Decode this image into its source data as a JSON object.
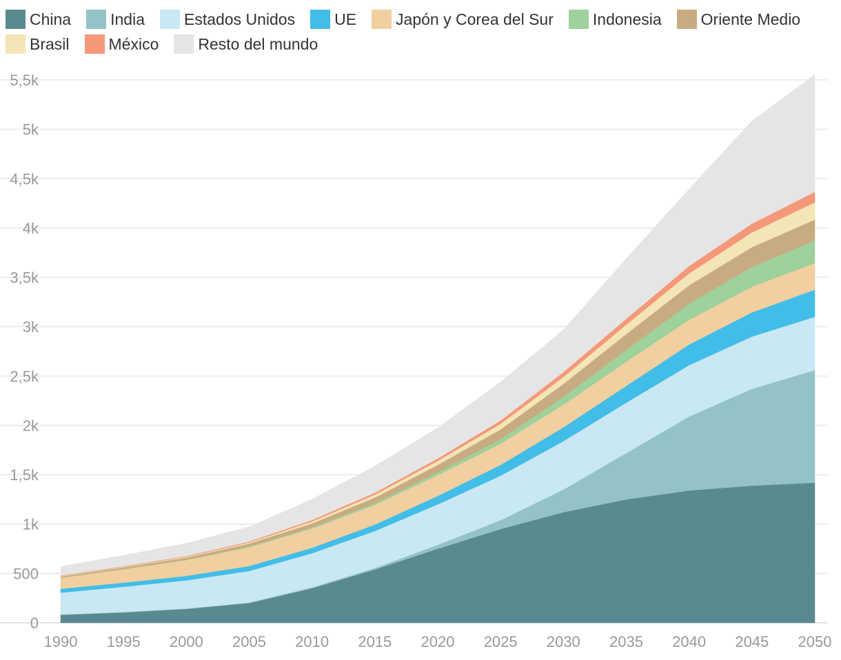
{
  "chart_data": {
    "type": "area",
    "stacked": true,
    "x": [
      1990,
      1995,
      2000,
      2005,
      2010,
      2015,
      2020,
      2025,
      2030,
      2035,
      2040,
      2045,
      2050
    ],
    "x_ticks": [
      "1990",
      "1995",
      "2000",
      "2005",
      "2010",
      "2015",
      "2020",
      "2025",
      "2030",
      "2035",
      "2040",
      "2045",
      "2050"
    ],
    "ylim": [
      0,
      5500
    ],
    "y_ticks": [
      0,
      500,
      1000,
      1500,
      2000,
      2500,
      3000,
      3500,
      4000,
      4500,
      5000,
      5500
    ],
    "y_tick_labels": [
      "0",
      "500",
      "1k",
      "1,5k",
      "2k",
      "2,5k",
      "3k",
      "3,5k",
      "4k",
      "4,5k",
      "5k",
      "5,5k"
    ],
    "grid": true,
    "legend_position": "top",
    "series": [
      {
        "name": "China",
        "color": "#598a8f",
        "values": [
          80,
          105,
          140,
          200,
          350,
          540,
          750,
          950,
          1120,
          1250,
          1340,
          1390,
          1420
        ]
      },
      {
        "name": "India",
        "color": "#94c3c7",
        "values": [
          5,
          5,
          5,
          5,
          10,
          15,
          40,
          90,
          230,
          470,
          750,
          980,
          1140
        ]
      },
      {
        "name": "Estados Unidos",
        "color": "#c9e8f3",
        "values": [
          220,
          255,
          285,
          320,
          345,
          375,
          410,
          450,
          490,
          510,
          520,
          530,
          540
        ]
      },
      {
        "name": "UE",
        "color": "#42bde8",
        "values": [
          40,
          42,
          45,
          50,
          55,
          65,
          85,
          110,
          140,
          170,
          210,
          245,
          275
        ]
      },
      {
        "name": "Japón y Corea del Sur",
        "color": "#f1cfa0",
        "values": [
          110,
          135,
          160,
          190,
          195,
          200,
          210,
          215,
          230,
          245,
          250,
          260,
          270
        ]
      },
      {
        "name": "Indonesia",
        "color": "#9ed19b",
        "values": [
          3,
          4,
          5,
          8,
          12,
          18,
          30,
          45,
          80,
          120,
          165,
          200,
          230
        ]
      },
      {
        "name": "Oriente Medio",
        "color": "#c9ab82",
        "values": [
          12,
          15,
          20,
          30,
          40,
          55,
          75,
          100,
          130,
          160,
          185,
          200,
          210
        ]
      },
      {
        "name": "Brasil",
        "color": "#f3e5b5",
        "values": [
          5,
          6,
          8,
          10,
          20,
          30,
          40,
          55,
          70,
          95,
          120,
          150,
          175
        ]
      },
      {
        "name": "México",
        "color": "#f59879",
        "values": [
          5,
          6,
          8,
          10,
          15,
          20,
          25,
          35,
          50,
          60,
          75,
          90,
          105
        ]
      },
      {
        "name": "Resto del mundo",
        "color": "#e5e5e5",
        "values": [
          90,
          110,
          130,
          150,
          210,
          270,
          310,
          390,
          430,
          610,
          780,
          1040,
          1190
        ]
      }
    ]
  }
}
